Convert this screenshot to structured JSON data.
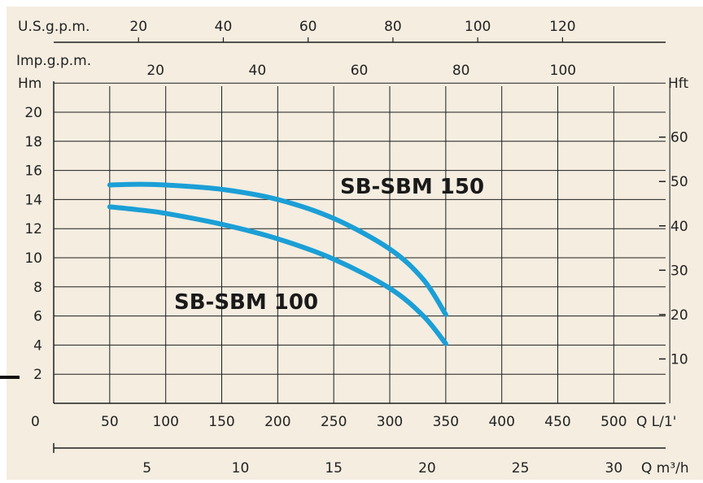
{
  "colors": {
    "background": "#f4ede0",
    "grid": "#1e1e1e",
    "curve": "#1b9fd6",
    "text": "#222222"
  },
  "chart_data": {
    "type": "line",
    "x": [
      50,
      75,
      100,
      150,
      200,
      250,
      300,
      330,
      350
    ],
    "xlabel": "Q L/1'",
    "ylabel": "Hm",
    "xlim": [
      0,
      550
    ],
    "ylim": [
      0,
      22
    ],
    "xticks": [
      "50",
      "100",
      "150",
      "200",
      "250",
      "300",
      "350",
      "400",
      "450",
      "500"
    ],
    "yticks": [
      "2",
      "4",
      "6",
      "8",
      "10",
      "12",
      "14",
      "16",
      "18",
      "20"
    ],
    "grid": true,
    "series": [
      {
        "name": "SB-SBM 150",
        "values": [
          15.0,
          15.05,
          15.0,
          14.7,
          14.0,
          12.7,
          10.6,
          8.5,
          6.1
        ]
      },
      {
        "name": "SB-SBM 100",
        "values": [
          13.5,
          13.3,
          13.05,
          12.3,
          11.3,
          9.9,
          7.9,
          6.0,
          4.1
        ]
      }
    ],
    "origin_label": "0",
    "secondary_axes": {
      "usgpm": {
        "label": "U.S.g.p.m.",
        "ticks": [
          "20",
          "40",
          "60",
          "80",
          "100",
          "120"
        ],
        "values": [
          20,
          40,
          60,
          80,
          100,
          120
        ]
      },
      "impgpm": {
        "label": "Imp.g.p.m.",
        "ticks": [
          "20",
          "40",
          "60",
          "80",
          "100"
        ],
        "values": [
          20,
          40,
          60,
          80,
          100
        ]
      },
      "hft": {
        "label": "Hft",
        "ticks": [
          "10",
          "20",
          "30",
          "40",
          "50",
          "60"
        ],
        "values": [
          10,
          20,
          30,
          40,
          50,
          60
        ]
      },
      "m3h": {
        "label": "Q m³/h",
        "ticks": [
          "5",
          "10",
          "15",
          "20",
          "25",
          "30"
        ],
        "values": [
          5,
          10,
          15,
          20,
          25,
          30
        ]
      }
    }
  }
}
